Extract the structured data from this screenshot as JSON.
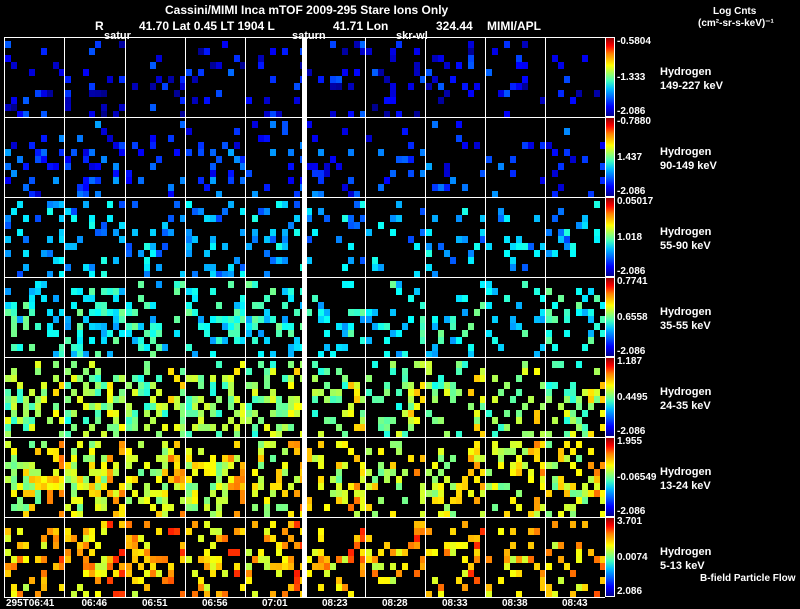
{
  "header": {
    "title": "Cassini/MIMI Inca mTOF  2009-295   Stare   Ions Only",
    "r_label": "R",
    "position": "41.70 Lat 0.45 LT 1904 L",
    "l_value": "41.71 Lon",
    "lon_value": "324.44",
    "credit": "MIMI/APL"
  },
  "units": {
    "line1": "Log Cnts",
    "line2": "(cm²-sr-s-keV)⁻¹"
  },
  "overlay_labels": [
    "satur",
    "saturn",
    "skr-wl"
  ],
  "rows": [
    {
      "species": "Hydrogen",
      "energy": "149-227 keV",
      "max": "-0.5804",
      "mid": "-1.333",
      "min": "-2.086",
      "level": 0.12,
      "density": 0.14
    },
    {
      "species": "Hydrogen",
      "energy": "90-149 keV",
      "max": "-0.7880",
      "mid": "1.437",
      "min": "-2.086",
      "level": 0.18,
      "density": 0.16
    },
    {
      "species": "Hydrogen",
      "energy": "55-90 keV",
      "max": "0.05017",
      "mid": "1.018",
      "min": "-2.086",
      "level": 0.3,
      "density": 0.2
    },
    {
      "species": "Hydrogen",
      "energy": "35-55 keV",
      "max": "0.7741",
      "mid": "0.6558",
      "min": "-2.086",
      "level": 0.38,
      "density": 0.3
    },
    {
      "species": "Hydrogen",
      "energy": "24-35 keV",
      "max": "1.187",
      "mid": "0.4495",
      "min": "-2.086",
      "level": 0.5,
      "density": 0.38
    },
    {
      "species": "Hydrogen",
      "energy": "13-24 keV",
      "max": "1.955",
      "mid": "-0.06549",
      "min": "-2.086",
      "level": 0.58,
      "density": 0.42
    },
    {
      "species": "Hydrogen",
      "energy": "5-13 keV",
      "max": "3.701",
      "mid": "0.0074",
      "min": "2.086",
      "level": 0.66,
      "density": 0.3
    }
  ],
  "footer_note": "B-field Particle Flow",
  "times": [
    "295T06:41",
    "06:46",
    "06:51",
    "06:56",
    "07:01",
    "08:23",
    "08:28",
    "08:33",
    "08:38",
    "08:43"
  ]
}
